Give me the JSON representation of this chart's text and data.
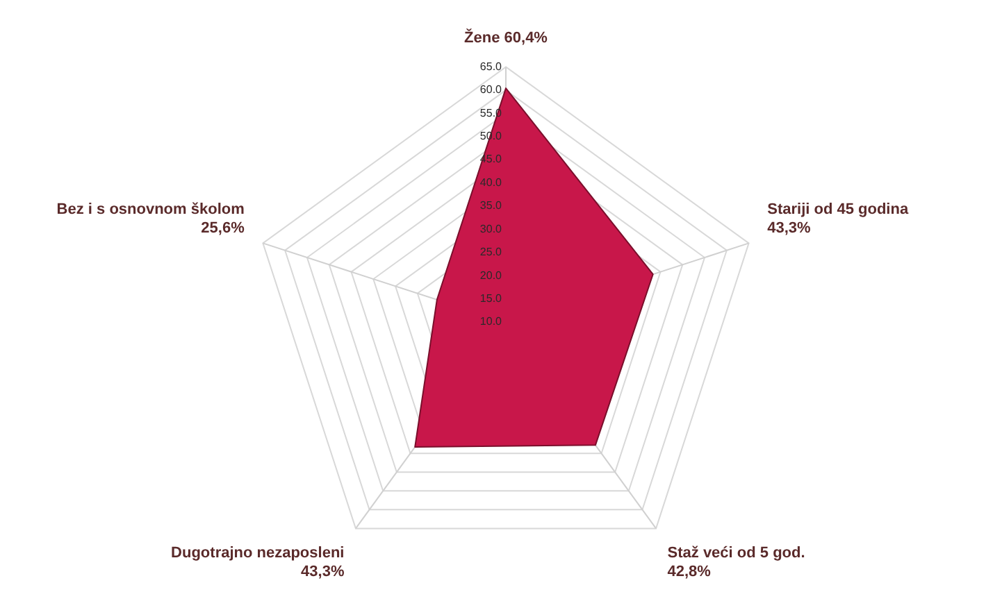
{
  "chart_data": {
    "type": "radar",
    "categories": [
      "Žene 60,4%",
      "Stariji od 45 godina 43,3%",
      "Staž veći od 5 god. 42,8%",
      "Dugotrajno nezaposleni 43,3%",
      "Bez i s osnovnom školom 25,6%"
    ],
    "series": [
      {
        "color": "#c8174a",
        "values": [
          60.4,
          43.3,
          42.8,
          43.3,
          25.6
        ]
      }
    ],
    "ylim": [
      10,
      65
    ],
    "yticks": [
      {
        "value": 10,
        "label": "10.0"
      },
      {
        "value": 15,
        "label": "15.0"
      },
      {
        "value": 20,
        "label": "20.0"
      },
      {
        "value": 25,
        "label": "25.0"
      },
      {
        "value": 30,
        "label": "30.0"
      },
      {
        "value": 35,
        "label": "35.0"
      },
      {
        "value": 40,
        "label": "40.0"
      },
      {
        "value": 45,
        "label": "45.0"
      },
      {
        "value": 50,
        "label": "50.0"
      },
      {
        "value": 55,
        "label": "55.0"
      },
      {
        "value": 60,
        "label": "60.0"
      },
      {
        "value": 65,
        "label": "65.0"
      }
    ],
    "grid": true,
    "legend": false,
    "marker": "none"
  }
}
